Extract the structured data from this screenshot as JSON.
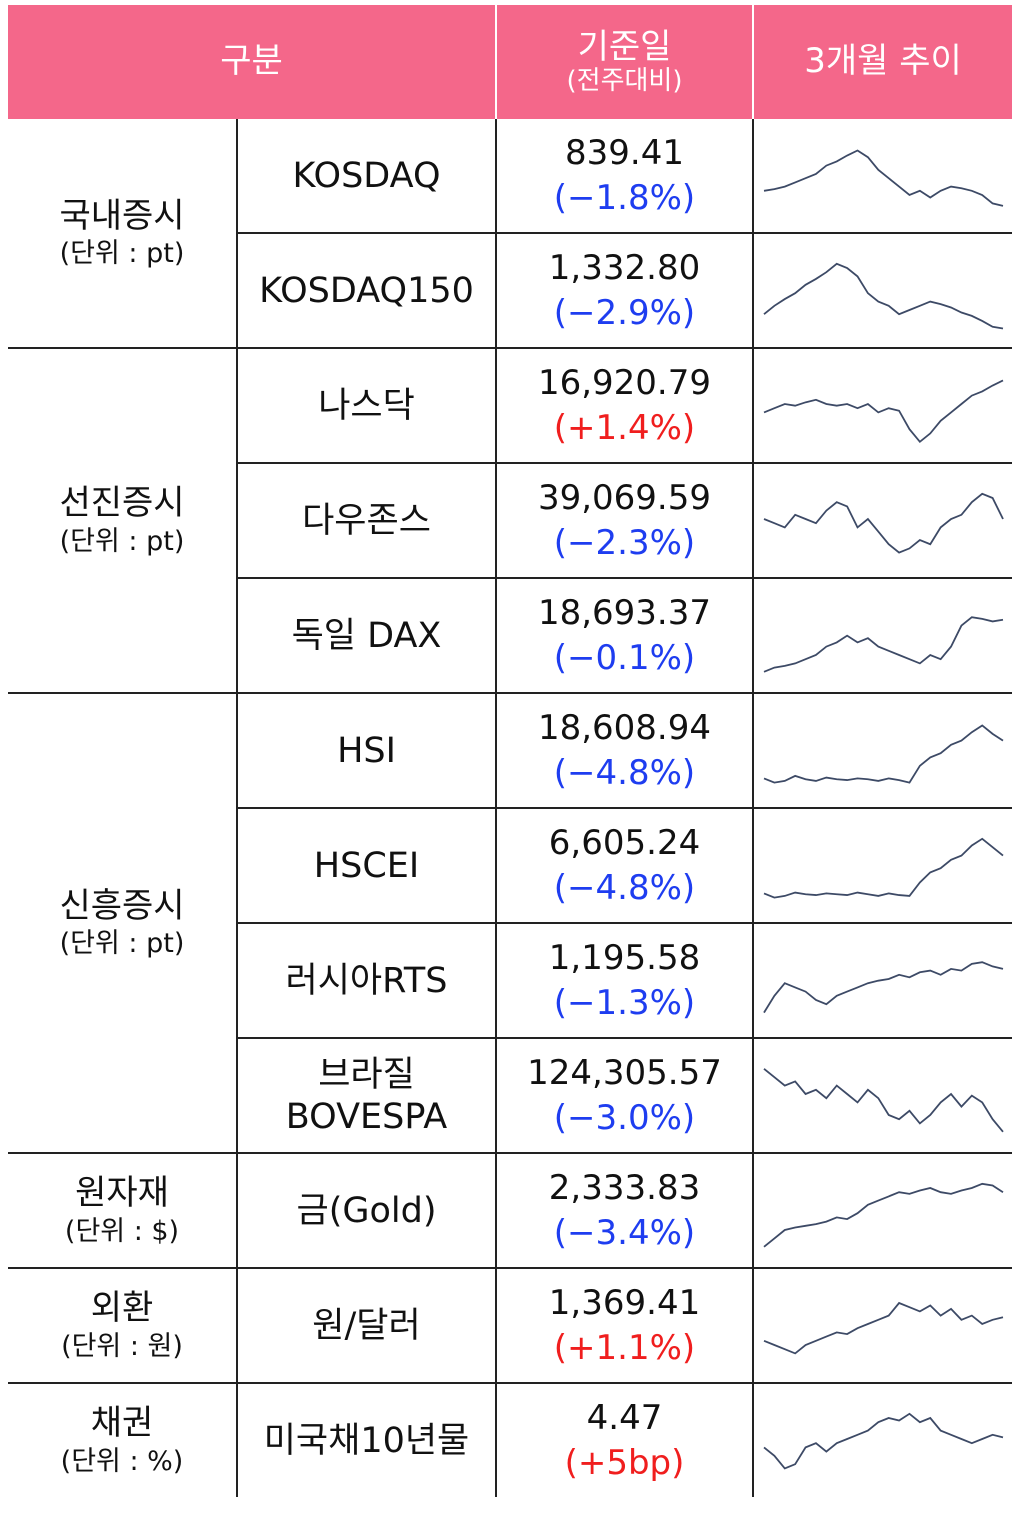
{
  "header": {
    "category": "구분",
    "date": "기준일",
    "date_note": "(전주대비)",
    "trend": "3개월 추이"
  },
  "groups": [
    {
      "label": "국내증시",
      "unit": "(단위 : pt)",
      "rows": [
        {
          "name": "KOSDAQ",
          "value": "839.41",
          "change": "(−1.8%)",
          "trend": [
            30,
            32,
            35,
            40,
            45,
            50,
            60,
            65,
            72,
            78,
            70,
            55,
            45,
            35,
            25,
            30,
            22,
            30,
            35,
            33,
            30,
            25,
            15,
            12
          ]
        },
        {
          "name": "KOSDAQ150",
          "value": "1,332.80",
          "change": "(−2.9%)",
          "trend": [
            20,
            30,
            38,
            45,
            55,
            62,
            70,
            80,
            75,
            65,
            45,
            35,
            30,
            20,
            25,
            30,
            35,
            32,
            28,
            22,
            18,
            12,
            5,
            3
          ]
        }
      ]
    },
    {
      "label": "선진증시",
      "unit": "(단위 : pt)",
      "rows": [
        {
          "name": "나스닥",
          "value": "16,920.79",
          "change": "(+1.4%)",
          "trend": [
            40,
            45,
            50,
            48,
            52,
            55,
            50,
            48,
            50,
            45,
            50,
            40,
            45,
            42,
            20,
            5,
            15,
            30,
            40,
            50,
            60,
            65,
            72,
            78
          ]
        },
        {
          "name": "다우존스",
          "value": "39,069.59",
          "change": "(−2.3%)",
          "trend": [
            50,
            45,
            40,
            55,
            50,
            45,
            60,
            70,
            65,
            40,
            50,
            35,
            20,
            10,
            15,
            25,
            20,
            40,
            50,
            55,
            70,
            80,
            75,
            50
          ]
        },
        {
          "name": "독일 DAX",
          "value": "18,693.37",
          "change": "(−0.1%)",
          "trend": [
            5,
            10,
            12,
            15,
            20,
            25,
            35,
            40,
            48,
            40,
            45,
            35,
            30,
            25,
            20,
            15,
            25,
            20,
            35,
            60,
            70,
            68,
            65,
            67
          ]
        }
      ]
    },
    {
      "label": "신흥증시",
      "unit": "(단위 : pt)",
      "rows": [
        {
          "name": "HSI",
          "value": "18,608.94",
          "change": "(−4.8%)",
          "trend": [
            15,
            10,
            12,
            18,
            14,
            12,
            16,
            14,
            13,
            15,
            14,
            12,
            15,
            13,
            10,
            30,
            40,
            45,
            55,
            60,
            70,
            78,
            68,
            60
          ]
        },
        {
          "name": "HSCEI",
          "value": "6,605.24",
          "change": "(−4.8%)",
          "trend": [
            15,
            10,
            12,
            16,
            14,
            13,
            15,
            14,
            13,
            16,
            14,
            12,
            15,
            13,
            12,
            28,
            40,
            45,
            55,
            60,
            72,
            80,
            70,
            60
          ]
        },
        {
          "name": "러시아RTS",
          "value": "1,195.58",
          "change": "(−1.3%)",
          "trend": [
            10,
            30,
            45,
            40,
            35,
            25,
            20,
            30,
            35,
            40,
            45,
            48,
            50,
            55,
            52,
            58,
            60,
            55,
            62,
            60,
            68,
            70,
            65,
            62
          ]
        },
        {
          "name": "브라질\nBOVESPA",
          "value": "124,305.57",
          "change": "(−3.0%)",
          "trend": [
            80,
            70,
            60,
            65,
            50,
            55,
            45,
            60,
            50,
            40,
            55,
            45,
            25,
            20,
            30,
            15,
            25,
            40,
            50,
            35,
            48,
            40,
            20,
            5
          ]
        }
      ]
    },
    {
      "label": "원자재",
      "unit": "(단위 : $)",
      "rows": [
        {
          "name": "금(Gold)",
          "value": "2,333.83",
          "change": "(−3.4%)",
          "trend": [
            5,
            15,
            25,
            28,
            30,
            32,
            35,
            40,
            38,
            45,
            55,
            60,
            65,
            70,
            68,
            72,
            75,
            70,
            68,
            72,
            75,
            80,
            78,
            70
          ]
        }
      ]
    },
    {
      "label": "외환",
      "unit": "(단위 : 원)",
      "rows": [
        {
          "name": "원/달러",
          "value": "1,369.41",
          "change": "(+1.1%)",
          "trend": [
            30,
            25,
            20,
            15,
            25,
            30,
            35,
            40,
            38,
            45,
            50,
            55,
            60,
            75,
            70,
            65,
            72,
            60,
            68,
            55,
            60,
            50,
            55,
            58
          ]
        }
      ]
    },
    {
      "label": "채권",
      "unit": "(단위 : %)",
      "rows": [
        {
          "name": "미국채10년물",
          "value": "4.47",
          "change": "(+5bp)",
          "trend": [
            40,
            30,
            15,
            20,
            40,
            45,
            35,
            45,
            50,
            55,
            60,
            70,
            75,
            72,
            80,
            70,
            75,
            60,
            55,
            50,
            45,
            50,
            55,
            52
          ]
        }
      ]
    }
  ]
}
